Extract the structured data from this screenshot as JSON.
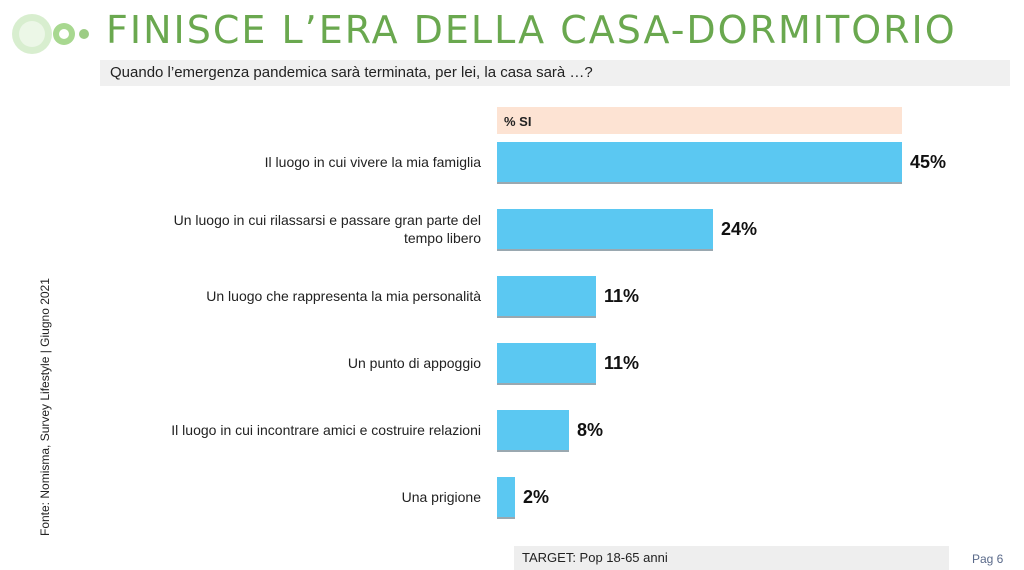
{
  "slide": {
    "title": "FINISCE L’ERA DELLA CASA-DORMITORIO",
    "subtitle": "Quando l’emergenza pandemica sarà terminata, per lei, la casa sarà …?",
    "source": "Fonte: Nomisma, Survey Lifestyle | Giugno 2021",
    "target": "TARGET: Pop 18-65 anni",
    "page": "Pag 6"
  },
  "colors": {
    "title_green": "#6aa84f",
    "bar": "#5bc8f2",
    "header_band": "#fde3d3",
    "logo_green": "#b8e0a8"
  },
  "chart_data": {
    "type": "bar",
    "orientation": "horizontal",
    "header": "% SI",
    "categories": [
      "Il luogo in cui vivere la mia famiglia",
      "Un luogo in cui rilassarsi e passare gran parte del tempo libero",
      "Un luogo che rappresenta la mia personalità",
      "Un punto di appoggio",
      "Il luogo in cui incontrare amici e costruire relazioni",
      "Una prigione"
    ],
    "category_lines": [
      [
        "Il luogo in cui vivere la mia famiglia"
      ],
      [
        "Un luogo in cui rilassarsi e passare gran parte del",
        "tempo libero"
      ],
      [
        "Un luogo che rappresenta la mia personalità"
      ],
      [
        "Un punto di appoggio"
      ],
      [
        "Il luogo in cui incontrare amici e costruire relazioni"
      ],
      [
        "Una prigione"
      ]
    ],
    "values": [
      45,
      24,
      11,
      11,
      8,
      2
    ],
    "value_labels": [
      "45%",
      "24%",
      "11%",
      "11%",
      "8%",
      "2%"
    ],
    "xlim": [
      0,
      45
    ],
    "grid": false,
    "legend": "none"
  }
}
